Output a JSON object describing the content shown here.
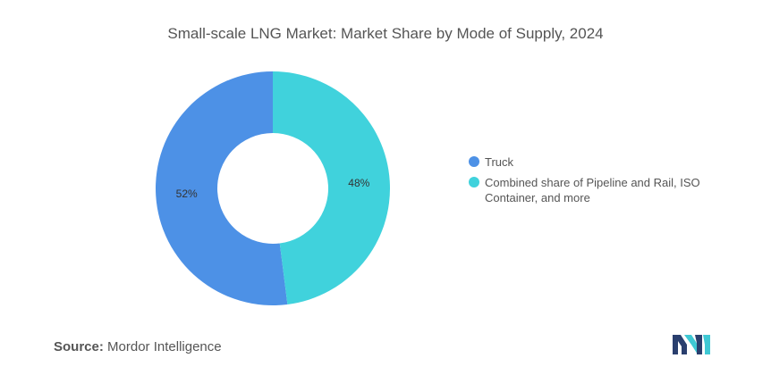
{
  "title": "Small-scale LNG Market: Market Share by Mode of Supply, 2024",
  "source": {
    "label": "Source:",
    "value": "Mordor Intelligence"
  },
  "colors": {
    "truck": "#4d91e6",
    "combined": "#40d2dc",
    "text": "#555555"
  },
  "chart_data": {
    "type": "pie",
    "title": "Small-scale LNG Market: Market Share by Mode of Supply, 2024",
    "donut": true,
    "legend_position": "right",
    "slices": [
      {
        "name": "Truck",
        "value": 52,
        "label": "52%",
        "color": "#4d91e6"
      },
      {
        "name": "Combined share of Pipeline and Rail, ISO Container, and more",
        "value": 48,
        "label": "48%",
        "color": "#40d2dc"
      }
    ]
  },
  "legend": [
    {
      "label": "Truck",
      "color": "#4d91e6"
    },
    {
      "label": "Combined share of Pipeline and Rail, ISO Container, and more",
      "color": "#40d2dc"
    }
  ],
  "logo_icon": "mordor-intelligence-logo-icon"
}
